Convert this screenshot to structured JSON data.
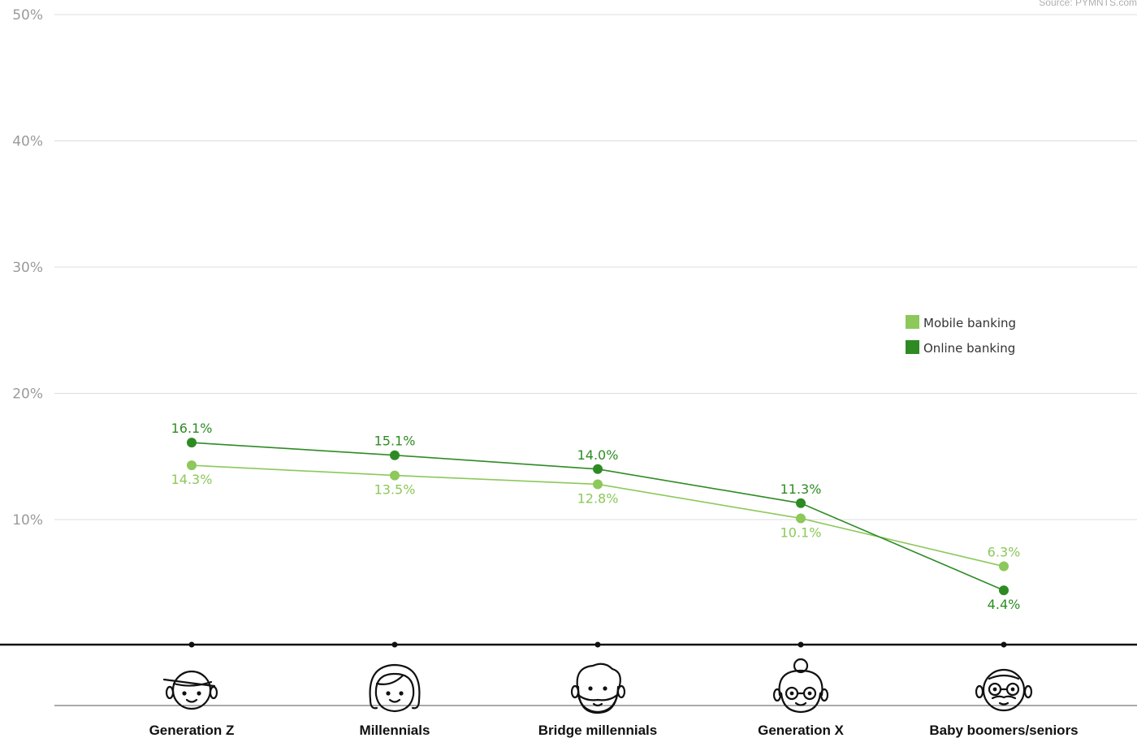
{
  "source": "Source: PYMNTS.com",
  "chart_data": {
    "type": "line",
    "categories": [
      "Generation Z",
      "Millennials",
      "Bridge millennials",
      "Generation X",
      "Baby boomers/seniors"
    ],
    "series": [
      {
        "name": "Mobile banking",
        "color": "#8cc85a",
        "values": [
          14.3,
          13.5,
          12.8,
          10.1,
          6.3
        ],
        "labels": [
          "14.3%",
          "13.5%",
          "12.8%",
          "10.1%",
          "6.3%"
        ]
      },
      {
        "name": "Online banking",
        "color": "#2e8b24",
        "values": [
          16.1,
          15.1,
          14.0,
          11.3,
          4.4
        ],
        "labels": [
          "16.1%",
          "15.1%",
          "14.0%",
          "11.3%",
          "4.4%"
        ]
      }
    ],
    "yticks": [
      "10%",
      "20%",
      "30%",
      "40%",
      "50%"
    ],
    "ylim": [
      0,
      50
    ],
    "grid": true,
    "legend": "right",
    "icons": [
      "gen-z-face-icon",
      "millennial-face-icon",
      "bridge-millennial-face-icon",
      "gen-x-face-icon",
      "boomer-face-icon"
    ]
  }
}
